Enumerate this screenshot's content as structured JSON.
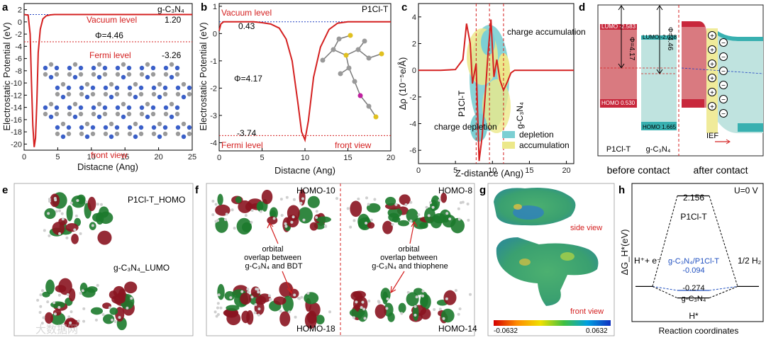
{
  "panels": {
    "a": {
      "label": "a",
      "title": "g-C₃N₄",
      "xlabel": "Distacne (Ang)",
      "ylabel": "Electrostatic Potential (eV)",
      "xticks": [
        "0",
        "5",
        "10",
        "15",
        "20",
        "25"
      ],
      "yticks": [
        "2",
        "0",
        "-2",
        "-4",
        "-6",
        "-8",
        "-10",
        "-12",
        "-14",
        "-16",
        "-18",
        "-20"
      ],
      "vacuum_label": "Vacuum level",
      "vacuum_value": "1.20",
      "fermi_label": "Fermi level",
      "fermi_value": "-3.26",
      "phi_label": "Φ=4.46",
      "view_label": "front view"
    },
    "b": {
      "label": "b",
      "title": "P1Cl-T",
      "xlabel": "Distacne (Ang)",
      "ylabel": "Electrostatic Potential (eV)",
      "xticks": [
        "0",
        "5",
        "10",
        "15",
        "20"
      ],
      "yticks": [
        "1",
        "0",
        "-1",
        "-2",
        "-3",
        "-4"
      ],
      "vacuum_label": "Vacuum level",
      "vacuum_value": "0.43",
      "fermi_label": "Fermi level",
      "fermi_value": "-3.74",
      "phi_label": "Φ=4.17",
      "view_label": "front view"
    },
    "c": {
      "label": "c",
      "xlabel": "Z-distance (Ang)",
      "ylabel": "Δρ (10⁻⁵e/Å)",
      "xticks": [
        "0",
        "5",
        "10",
        "15",
        "20"
      ],
      "yticks": [
        "4",
        "2",
        "0",
        "-2",
        "-4",
        "-6"
      ],
      "accumulation_note": "charge accumulation",
      "depletion_note": "charge depletion",
      "left_tag": "P1Cl-T",
      "right_tag": "g-C₃N₄",
      "legend": [
        {
          "label": "depletion",
          "color": "#7ccfd3"
        },
        {
          "label": "accumulation",
          "color": "#ece88a"
        }
      ]
    },
    "d": {
      "label": "d",
      "lumo_p": "LUMO -2.583",
      "homo_p": "HOMO 0.530",
      "lumo_g": "LUMO -2.038",
      "homo_g": "HOMO 1.665",
      "phi_p": "Φ=4.17",
      "phi_g": "Φ=4.46",
      "name_p": "P1Cl-T",
      "name_g": "g-C₃N₄",
      "ief": "IEF",
      "before": "before contact",
      "after": "after contact"
    },
    "e": {
      "label": "e",
      "homo_caption": "P1Cl-T_HOMO",
      "lumo_caption": "g-C₃N₄_LUMO"
    },
    "f": {
      "label": "f",
      "homo10": "HOMO-10",
      "homo8": "HOMO-8",
      "homo18": "HOMO-18",
      "homo14": "HOMO-14",
      "note_left": [
        "orbital",
        "overlap between",
        "g-C₃N₄ and BDT"
      ],
      "note_right": [
        "orbital",
        "overlap between",
        "g-C₃N₄ and thiophene"
      ]
    },
    "g": {
      "label": "g",
      "side_view": "side view",
      "front_view": "front view",
      "cbar_min": "-0.0632",
      "cbar_max": "0.0632"
    },
    "h": {
      "label": "h",
      "condition": "U=0 V",
      "ylabel": "ΔG_H*(eV)",
      "xlabel": "Reaction coordinates",
      "left_state": "H⁺+ e⁻",
      "right_state": "1/2 H₂",
      "mid_state": "H*",
      "lvl_top_value": "2.156",
      "lvl_top_name": "P1Cl-T",
      "lvl_mid_name": "g-C₃N₄/P1Cl-T",
      "lvl_mid_value": "-0.094",
      "lvl_low_value": "-0.274",
      "lvl_low_name": "g-C₃N₄"
    }
  },
  "watermark": "大数据网",
  "chart_data": [
    {
      "panel": "a",
      "type": "line",
      "title": "g-C₃N₄",
      "xlabel": "Distacne (Ang)",
      "ylabel": "Electrostatic Potential (eV)",
      "xlim": [
        0,
        25
      ],
      "ylim": [
        -21,
        3
      ],
      "x": [
        0,
        0.6,
        0.9,
        1.1,
        1.3,
        1.5,
        1.7,
        1.9,
        2.1,
        2.4,
        2.8,
        3.3,
        3.9,
        4.5,
        6,
        10,
        15,
        20,
        25
      ],
      "y": [
        1.2,
        1.1,
        -2,
        -10,
        -17,
        -20.5,
        -19,
        -13,
        -5,
        -1.2,
        0.5,
        1.0,
        1.15,
        1.2,
        1.2,
        1.2,
        1.2,
        1.2,
        1.2
      ],
      "reference_lines": [
        {
          "name": "Vacuum level",
          "value": 1.2
        },
        {
          "name": "Fermi level",
          "value": -3.26
        }
      ],
      "work_function": 4.46
    },
    {
      "panel": "b",
      "type": "line",
      "title": "P1Cl-T",
      "xlabel": "Distacne (Ang)",
      "ylabel": "Electrostatic Potential (eV)",
      "xlim": [
        0,
        20
      ],
      "ylim": [
        -4.3,
        1.1
      ],
      "x": [
        0,
        0.2,
        0.5,
        1,
        2,
        3,
        4,
        5,
        6,
        7,
        7.8,
        8.5,
        9.2,
        9.6,
        10,
        10.4,
        11,
        11.8,
        12.8,
        13.8,
        15,
        20
      ],
      "y": [
        0.1,
        0.35,
        0.43,
        0.43,
        0.43,
        0.43,
        0.43,
        0.4,
        0.35,
        0.2,
        -0.2,
        -1.0,
        -2.6,
        -3.6,
        -3.9,
        -3.2,
        -1.6,
        -0.5,
        0.15,
        0.38,
        0.43,
        0.43
      ],
      "reference_lines": [
        {
          "name": "Vacuum level",
          "value": 0.43
        },
        {
          "name": "Fermi level",
          "value": -3.74
        }
      ],
      "work_function": 4.17
    },
    {
      "panel": "c",
      "type": "line",
      "xlabel": "Z-distance (Ang)",
      "ylabel": "Δρ (10⁻⁵e/Å)",
      "xlim": [
        0,
        21
      ],
      "ylim": [
        -7,
        5
      ],
      "x": [
        0,
        3,
        5,
        6,
        6.5,
        7,
        7.3,
        7.8,
        8.2,
        8.6,
        9,
        9.4,
        9.8,
        10.2,
        10.6,
        11,
        11.5,
        12,
        12.5,
        13,
        14,
        21
      ],
      "y": [
        0,
        0,
        0.05,
        0.8,
        3.5,
        2,
        -1,
        0.5,
        -6.8,
        -5,
        -2,
        1.2,
        3.8,
        -0.5,
        0.8,
        -0.7,
        -1.5,
        -0.9,
        -0.2,
        0,
        0,
        0
      ],
      "vertical_dashed_x": [
        7.8,
        9.6,
        11.5
      ]
    },
    {
      "panel": "h",
      "type": "line",
      "ylabel": "ΔG_H*(eV)",
      "xlabel": "Reaction coordinates",
      "categories": [
        "H⁺+ e⁻",
        "H*",
        "1/2 H₂"
      ],
      "series": [
        {
          "name": "P1Cl-T",
          "values": [
            0,
            2.156,
            0
          ]
        },
        {
          "name": "g-C₃N₄/P1Cl-T",
          "values": [
            0,
            -0.094,
            0
          ]
        },
        {
          "name": "g-C₃N₄",
          "values": [
            0,
            -0.274,
            0
          ]
        }
      ]
    }
  ]
}
